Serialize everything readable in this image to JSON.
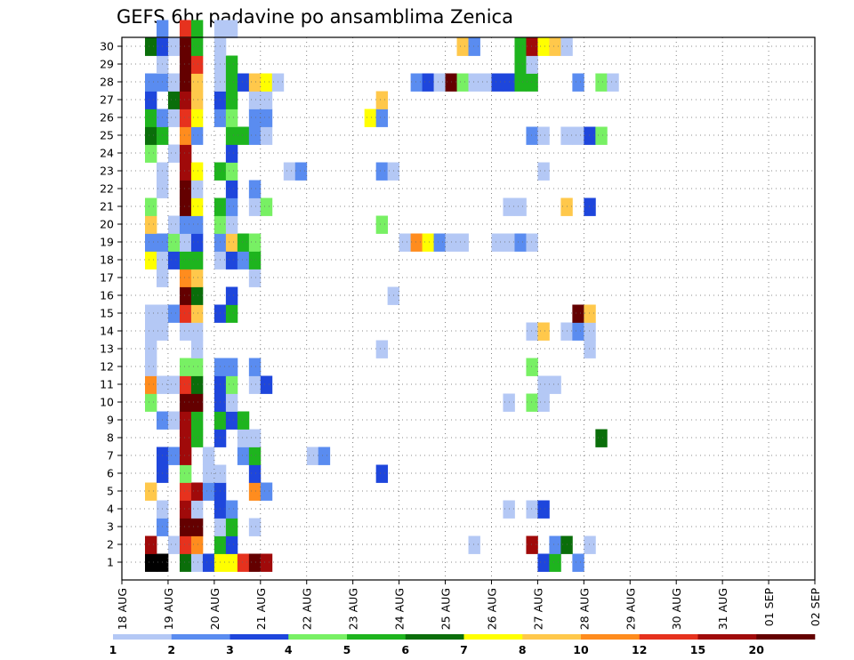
{
  "chart_data": {
    "type": "heatmap",
    "title": "GEFS 6hr padavine po ansamblima Zenica",
    "xlabel": "",
    "ylabel": "",
    "x_ticks": [
      "18 AUG",
      "19 AUG",
      "20 AUG",
      "21 AUG",
      "22 AUG",
      "23 AUG",
      "24 AUG",
      "25 AUG",
      "26 AUG",
      "27 AUG",
      "28 AUG",
      "29 AUG",
      "30 AUG",
      "31 AUG",
      "01 SEP",
      "02 SEP"
    ],
    "y_ticks": [
      "1",
      "2",
      "3",
      "4",
      "5",
      "6",
      "7",
      "8",
      "9",
      "10",
      "11",
      "12",
      "13",
      "14",
      "15",
      "16",
      "17",
      "18",
      "19",
      "20",
      "21",
      "22",
      "23",
      "24",
      "25",
      "26",
      "27",
      "28",
      "29",
      "30"
    ],
    "time_steps_per_day": 4,
    "ylim": [
      1,
      30
    ],
    "grid": true,
    "legend": {
      "placement": "bottom",
      "labels": [
        "1",
        "2",
        "3",
        "4",
        "5",
        "6",
        "7",
        "8",
        "10",
        "12",
        "15",
        "20"
      ],
      "colors": [
        "#b4c8f5",
        "#5a8cf0",
        "#1e46dc",
        "#78f064",
        "#1eb41e",
        "#0a6e0a",
        "#ffff00",
        "#ffc84b",
        "#ff8c1e",
        "#e6321e",
        "#a00a0a",
        "#640000"
      ]
    },
    "cells": [
      [
        1,
        0,
        15
      ],
      [
        1,
        1,
        15
      ],
      [
        1,
        3,
        5
      ],
      [
        1,
        4,
        0
      ],
      [
        1,
        5,
        2
      ],
      [
        1,
        6,
        6
      ],
      [
        1,
        7,
        6
      ],
      [
        1,
        8,
        9
      ],
      [
        1,
        9,
        11
      ],
      [
        1,
        10,
        10
      ],
      [
        1,
        34,
        2
      ],
      [
        1,
        35,
        4
      ],
      [
        1,
        37,
        1
      ],
      [
        2,
        0,
        10
      ],
      [
        2,
        2,
        0
      ],
      [
        2,
        3,
        9
      ],
      [
        2,
        4,
        8
      ],
      [
        2,
        6,
        4
      ],
      [
        2,
        7,
        2
      ],
      [
        2,
        28,
        0
      ],
      [
        2,
        33,
        10
      ],
      [
        2,
        35,
        1
      ],
      [
        2,
        36,
        5
      ],
      [
        2,
        38,
        0
      ],
      [
        3,
        1,
        1
      ],
      [
        3,
        3,
        11
      ],
      [
        3,
        4,
        11
      ],
      [
        3,
        6,
        0
      ],
      [
        3,
        7,
        4
      ],
      [
        3,
        9,
        0
      ],
      [
        4,
        1,
        0
      ],
      [
        4,
        3,
        10
      ],
      [
        4,
        4,
        0
      ],
      [
        4,
        6,
        2
      ],
      [
        4,
        7,
        1
      ],
      [
        4,
        31,
        0
      ],
      [
        4,
        33,
        0
      ],
      [
        4,
        34,
        2
      ],
      [
        5,
        0,
        7
      ],
      [
        5,
        3,
        9
      ],
      [
        5,
        4,
        10
      ],
      [
        5,
        5,
        1
      ],
      [
        5,
        6,
        2
      ],
      [
        5,
        9,
        8
      ],
      [
        5,
        10,
        1
      ],
      [
        6,
        1,
        2
      ],
      [
        6,
        3,
        3
      ],
      [
        6,
        5,
        0
      ],
      [
        6,
        6,
        0
      ],
      [
        6,
        9,
        2
      ],
      [
        6,
        20,
        2
      ],
      [
        7,
        1,
        2
      ],
      [
        7,
        2,
        1
      ],
      [
        7,
        3,
        10
      ],
      [
        7,
        5,
        0
      ],
      [
        7,
        8,
        1
      ],
      [
        7,
        9,
        4
      ],
      [
        7,
        14,
        0
      ],
      [
        7,
        15,
        1
      ],
      [
        8,
        3,
        10
      ],
      [
        8,
        4,
        4
      ],
      [
        8,
        6,
        2
      ],
      [
        8,
        8,
        0
      ],
      [
        8,
        9,
        0
      ],
      [
        8,
        39,
        5
      ],
      [
        9,
        1,
        1
      ],
      [
        9,
        2,
        0
      ],
      [
        9,
        3,
        10
      ],
      [
        9,
        4,
        4
      ],
      [
        9,
        6,
        4
      ],
      [
        9,
        7,
        2
      ],
      [
        9,
        8,
        4
      ],
      [
        10,
        0,
        3
      ],
      [
        10,
        3,
        11
      ],
      [
        10,
        4,
        11
      ],
      [
        10,
        6,
        2
      ],
      [
        10,
        7,
        0
      ],
      [
        10,
        31,
        0
      ],
      [
        10,
        33,
        3
      ],
      [
        10,
        34,
        0
      ],
      [
        11,
        0,
        8
      ],
      [
        11,
        1,
        0
      ],
      [
        11,
        2,
        0
      ],
      [
        11,
        3,
        9
      ],
      [
        11,
        4,
        5
      ],
      [
        11,
        6,
        2
      ],
      [
        11,
        7,
        3
      ],
      [
        11,
        9,
        0
      ],
      [
        11,
        10,
        2
      ],
      [
        11,
        34,
        0
      ],
      [
        11,
        35,
        0
      ],
      [
        12,
        0,
        0
      ],
      [
        12,
        3,
        3
      ],
      [
        12,
        4,
        3
      ],
      [
        12,
        6,
        1
      ],
      [
        12,
        7,
        1
      ],
      [
        12,
        9,
        1
      ],
      [
        12,
        33,
        3
      ],
      [
        13,
        0,
        0
      ],
      [
        13,
        4,
        0
      ],
      [
        13,
        20,
        0
      ],
      [
        13,
        38,
        0
      ],
      [
        14,
        0,
        0
      ],
      [
        14,
        1,
        0
      ],
      [
        14,
        3,
        0
      ],
      [
        14,
        4,
        0
      ],
      [
        14,
        33,
        0
      ],
      [
        14,
        34,
        7
      ],
      [
        14,
        36,
        0
      ],
      [
        14,
        37,
        1
      ],
      [
        14,
        38,
        0
      ],
      [
        15,
        0,
        0
      ],
      [
        15,
        1,
        0
      ],
      [
        15,
        2,
        1
      ],
      [
        15,
        3,
        9
      ],
      [
        15,
        4,
        7
      ],
      [
        15,
        6,
        2
      ],
      [
        15,
        7,
        4
      ],
      [
        15,
        37,
        11
      ],
      [
        15,
        38,
        7
      ],
      [
        16,
        3,
        11
      ],
      [
        16,
        4,
        5
      ],
      [
        16,
        7,
        2
      ],
      [
        16,
        21,
        0
      ],
      [
        17,
        1,
        0
      ],
      [
        17,
        3,
        8
      ],
      [
        17,
        4,
        7
      ],
      [
        17,
        9,
        0
      ],
      [
        18,
        0,
        6
      ],
      [
        18,
        1,
        0
      ],
      [
        18,
        2,
        2
      ],
      [
        18,
        3,
        4
      ],
      [
        18,
        4,
        4
      ],
      [
        18,
        6,
        0
      ],
      [
        18,
        7,
        2
      ],
      [
        18,
        8,
        1
      ],
      [
        18,
        9,
        4
      ],
      [
        19,
        0,
        1
      ],
      [
        19,
        1,
        1
      ],
      [
        19,
        2,
        3
      ],
      [
        19,
        3,
        0
      ],
      [
        19,
        4,
        2
      ],
      [
        19,
        6,
        1
      ],
      [
        19,
        7,
        7
      ],
      [
        19,
        8,
        4
      ],
      [
        19,
        9,
        3
      ],
      [
        19,
        22,
        0
      ],
      [
        19,
        23,
        8
      ],
      [
        19,
        24,
        6
      ],
      [
        19,
        25,
        1
      ],
      [
        19,
        26,
        0
      ],
      [
        19,
        27,
        0
      ],
      [
        19,
        30,
        0
      ],
      [
        19,
        31,
        0
      ],
      [
        19,
        32,
        1
      ],
      [
        19,
        33,
        0
      ],
      [
        20,
        0,
        7
      ],
      [
        20,
        2,
        0
      ],
      [
        20,
        3,
        1
      ],
      [
        20,
        4,
        1
      ],
      [
        20,
        6,
        3
      ],
      [
        20,
        7,
        0
      ],
      [
        20,
        20,
        3
      ],
      [
        21,
        0,
        3
      ],
      [
        21,
        3,
        11
      ],
      [
        21,
        4,
        6
      ],
      [
        21,
        6,
        4
      ],
      [
        21,
        7,
        1
      ],
      [
        21,
        9,
        0
      ],
      [
        21,
        10,
        3
      ],
      [
        21,
        31,
        0
      ],
      [
        21,
        32,
        0
      ],
      [
        21,
        36,
        7
      ],
      [
        21,
        38,
        2
      ],
      [
        22,
        1,
        0
      ],
      [
        22,
        3,
        11
      ],
      [
        22,
        4,
        0
      ],
      [
        22,
        7,
        2
      ],
      [
        22,
        9,
        1
      ],
      [
        23,
        1,
        0
      ],
      [
        23,
        3,
        10
      ],
      [
        23,
        4,
        6
      ],
      [
        23,
        6,
        4
      ],
      [
        23,
        7,
        3
      ],
      [
        23,
        12,
        0
      ],
      [
        23,
        13,
        1
      ],
      [
        23,
        20,
        1
      ],
      [
        23,
        21,
        0
      ],
      [
        23,
        34,
        0
      ],
      [
        24,
        0,
        3
      ],
      [
        24,
        2,
        0
      ],
      [
        24,
        3,
        10
      ],
      [
        24,
        7,
        2
      ],
      [
        25,
        0,
        5
      ],
      [
        25,
        1,
        4
      ],
      [
        25,
        3,
        8
      ],
      [
        25,
        4,
        1
      ],
      [
        25,
        7,
        4
      ],
      [
        25,
        8,
        4
      ],
      [
        25,
        9,
        1
      ],
      [
        25,
        10,
        0
      ],
      [
        25,
        33,
        1
      ],
      [
        25,
        34,
        0
      ],
      [
        25,
        36,
        0
      ],
      [
        25,
        37,
        0
      ],
      [
        25,
        38,
        2
      ],
      [
        25,
        39,
        3
      ],
      [
        26,
        0,
        4
      ],
      [
        26,
        1,
        1
      ],
      [
        26,
        2,
        0
      ],
      [
        26,
        3,
        9
      ],
      [
        26,
        4,
        6
      ],
      [
        26,
        6,
        1
      ],
      [
        26,
        7,
        3
      ],
      [
        26,
        9,
        1
      ],
      [
        26,
        10,
        1
      ],
      [
        26,
        19,
        6
      ],
      [
        26,
        20,
        1
      ],
      [
        27,
        0,
        2
      ],
      [
        27,
        2,
        5
      ],
      [
        27,
        3,
        10
      ],
      [
        27,
        4,
        7
      ],
      [
        27,
        6,
        2
      ],
      [
        27,
        7,
        4
      ],
      [
        27,
        9,
        0
      ],
      [
        27,
        10,
        0
      ],
      [
        27,
        20,
        7
      ],
      [
        28,
        0,
        1
      ],
      [
        28,
        1,
        1
      ],
      [
        28,
        2,
        0
      ],
      [
        28,
        3,
        11
      ],
      [
        28,
        4,
        7
      ],
      [
        28,
        6,
        0
      ],
      [
        28,
        7,
        4
      ],
      [
        28,
        8,
        2
      ],
      [
        28,
        9,
        7
      ],
      [
        28,
        10,
        6
      ],
      [
        28,
        11,
        0
      ],
      [
        28,
        23,
        1
      ],
      [
        28,
        24,
        2
      ],
      [
        28,
        25,
        0
      ],
      [
        28,
        26,
        11
      ],
      [
        28,
        27,
        3
      ],
      [
        28,
        28,
        0
      ],
      [
        28,
        29,
        0
      ],
      [
        28,
        30,
        2
      ],
      [
        28,
        31,
        2
      ],
      [
        28,
        32,
        4
      ],
      [
        28,
        33,
        4
      ],
      [
        28,
        37,
        1
      ],
      [
        28,
        39,
        3
      ],
      [
        28,
        40,
        0
      ],
      [
        29,
        1,
        0
      ],
      [
        29,
        3,
        11
      ],
      [
        29,
        4,
        9
      ],
      [
        29,
        6,
        0
      ],
      [
        29,
        7,
        4
      ],
      [
        29,
        32,
        4
      ],
      [
        29,
        33,
        0
      ],
      [
        30,
        0,
        5
      ],
      [
        30,
        1,
        2
      ],
      [
        30,
        2,
        0
      ],
      [
        30,
        3,
        11
      ],
      [
        30,
        4,
        4
      ],
      [
        30,
        6,
        0
      ],
      [
        30,
        27,
        7
      ],
      [
        30,
        28,
        1
      ],
      [
        30,
        32,
        4
      ],
      [
        30,
        33,
        10
      ],
      [
        30,
        34,
        6
      ],
      [
        30,
        35,
        7
      ],
      [
        30,
        36,
        0
      ],
      [
        31,
        1,
        1
      ],
      [
        31,
        3,
        9
      ],
      [
        31,
        4,
        4
      ],
      [
        31,
        6,
        0
      ],
      [
        31,
        7,
        0
      ]
    ]
  }
}
